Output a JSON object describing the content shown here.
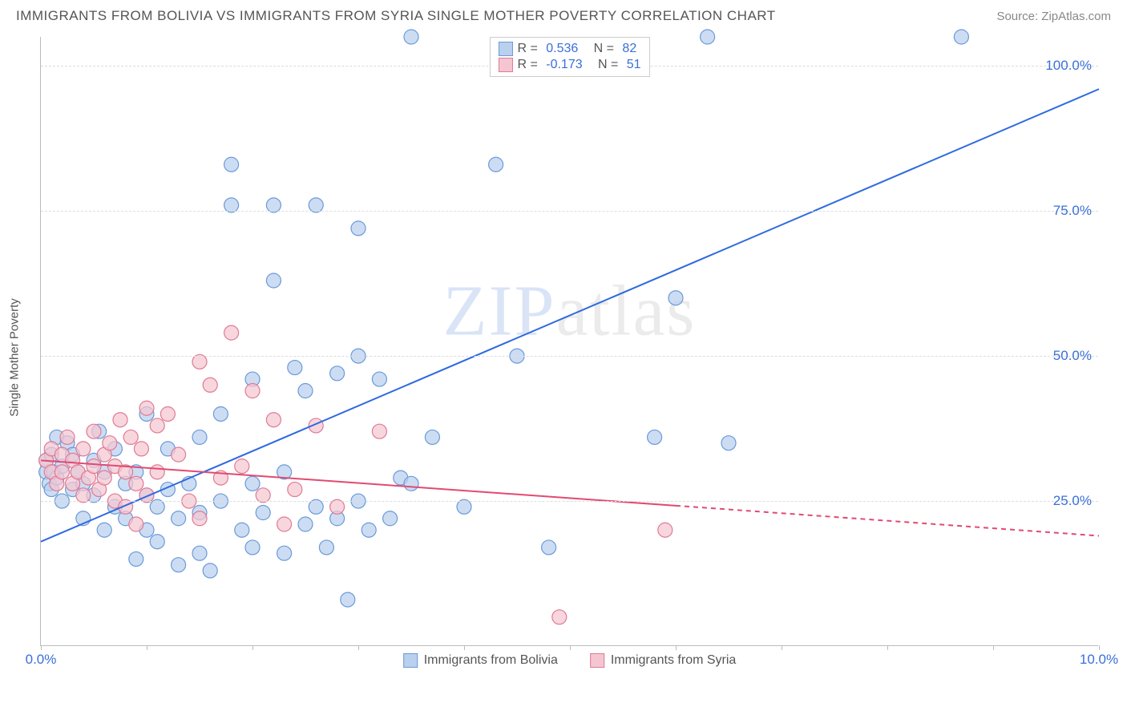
{
  "header": {
    "title": "IMMIGRANTS FROM BOLIVIA VS IMMIGRANTS FROM SYRIA SINGLE MOTHER POVERTY CORRELATION CHART",
    "source": "Source: ZipAtlas.com"
  },
  "chart": {
    "type": "scatter",
    "ylabel": "Single Mother Poverty",
    "watermark_a": "ZIP",
    "watermark_b": "atlas",
    "background_color": "#ffffff",
    "grid_color": "#dddddd",
    "axis_color": "#bbbbbb",
    "xlim": [
      0,
      10
    ],
    "ylim": [
      0,
      105
    ],
    "xtick_positions": [
      0,
      1,
      2,
      3,
      4,
      5,
      6,
      7,
      8,
      9,
      10
    ],
    "xtick_labels": {
      "0": "0.0%",
      "10": "10.0%"
    },
    "ytick_positions": [
      25,
      50,
      75,
      100
    ],
    "ytick_labels": {
      "25": "25.0%",
      "50": "50.0%",
      "75": "75.0%",
      "100": "100.0%"
    },
    "series": [
      {
        "name": "Immigrants from Bolivia",
        "color_fill": "#b9d0ee",
        "color_stroke": "#6a9ad8",
        "marker_radius": 9,
        "marker_opacity": 0.72,
        "line_color": "#2f6ae0",
        "line_width": 2,
        "R": "0.536",
        "N": "82",
        "trend": {
          "x1": 0,
          "y1": 18,
          "x2": 10,
          "y2": 96
        },
        "trend_dash_from_x": null,
        "points": [
          [
            0.05,
            30
          ],
          [
            0.05,
            32
          ],
          [
            0.08,
            28
          ],
          [
            0.1,
            33
          ],
          [
            0.1,
            27
          ],
          [
            0.12,
            30
          ],
          [
            0.15,
            29
          ],
          [
            0.15,
            36
          ],
          [
            0.2,
            25
          ],
          [
            0.2,
            31
          ],
          [
            0.25,
            35
          ],
          [
            0.3,
            27
          ],
          [
            0.3,
            33
          ],
          [
            0.35,
            30
          ],
          [
            0.4,
            22
          ],
          [
            0.4,
            28
          ],
          [
            0.5,
            26
          ],
          [
            0.5,
            32
          ],
          [
            0.55,
            37
          ],
          [
            0.6,
            20
          ],
          [
            0.6,
            30
          ],
          [
            0.7,
            24
          ],
          [
            0.7,
            34
          ],
          [
            0.8,
            22
          ],
          [
            0.8,
            28
          ],
          [
            0.9,
            15
          ],
          [
            0.9,
            30
          ],
          [
            1.0,
            20
          ],
          [
            1.0,
            26
          ],
          [
            1.0,
            40
          ],
          [
            1.1,
            18
          ],
          [
            1.1,
            24
          ],
          [
            1.2,
            27
          ],
          [
            1.2,
            34
          ],
          [
            1.3,
            14
          ],
          [
            1.3,
            22
          ],
          [
            1.4,
            28
          ],
          [
            1.5,
            16
          ],
          [
            1.5,
            23
          ],
          [
            1.5,
            36
          ],
          [
            1.6,
            13
          ],
          [
            1.7,
            25
          ],
          [
            1.7,
            40
          ],
          [
            1.8,
            76
          ],
          [
            1.8,
            83
          ],
          [
            1.9,
            20
          ],
          [
            2.0,
            17
          ],
          [
            2.0,
            28
          ],
          [
            2.0,
            46
          ],
          [
            2.1,
            23
          ],
          [
            2.2,
            63
          ],
          [
            2.2,
            76
          ],
          [
            2.3,
            16
          ],
          [
            2.3,
            30
          ],
          [
            2.4,
            48
          ],
          [
            2.5,
            21
          ],
          [
            2.5,
            44
          ],
          [
            2.6,
            24
          ],
          [
            2.6,
            76
          ],
          [
            2.7,
            17
          ],
          [
            2.8,
            22
          ],
          [
            2.8,
            47
          ],
          [
            2.9,
            8
          ],
          [
            3.0,
            25
          ],
          [
            3.0,
            50
          ],
          [
            3.0,
            72
          ],
          [
            3.1,
            20
          ],
          [
            3.2,
            46
          ],
          [
            3.3,
            22
          ],
          [
            3.4,
            29
          ],
          [
            3.5,
            105
          ],
          [
            3.5,
            28
          ],
          [
            3.7,
            36
          ],
          [
            4.0,
            24
          ],
          [
            4.3,
            83
          ],
          [
            4.5,
            50
          ],
          [
            4.8,
            17
          ],
          [
            5.8,
            36
          ],
          [
            6.0,
            60
          ],
          [
            6.3,
            105
          ],
          [
            6.5,
            35
          ],
          [
            8.7,
            105
          ]
        ]
      },
      {
        "name": "Immigrants from Syria",
        "color_fill": "#f5c6d1",
        "color_stroke": "#e07a94",
        "marker_radius": 9,
        "marker_opacity": 0.72,
        "line_color": "#e14a72",
        "line_width": 2,
        "R": "-0.173",
        "N": "51",
        "trend": {
          "x1": 0,
          "y1": 32,
          "x2": 10,
          "y2": 19
        },
        "trend_dash_from_x": 6.0,
        "points": [
          [
            0.05,
            32
          ],
          [
            0.1,
            30
          ],
          [
            0.1,
            34
          ],
          [
            0.15,
            28
          ],
          [
            0.2,
            33
          ],
          [
            0.2,
            30
          ],
          [
            0.25,
            36
          ],
          [
            0.3,
            28
          ],
          [
            0.3,
            32
          ],
          [
            0.35,
            30
          ],
          [
            0.4,
            26
          ],
          [
            0.4,
            34
          ],
          [
            0.45,
            29
          ],
          [
            0.5,
            31
          ],
          [
            0.5,
            37
          ],
          [
            0.55,
            27
          ],
          [
            0.6,
            33
          ],
          [
            0.6,
            29
          ],
          [
            0.65,
            35
          ],
          [
            0.7,
            25
          ],
          [
            0.7,
            31
          ],
          [
            0.75,
            39
          ],
          [
            0.8,
            24
          ],
          [
            0.8,
            30
          ],
          [
            0.85,
            36
          ],
          [
            0.9,
            21
          ],
          [
            0.9,
            28
          ],
          [
            0.95,
            34
          ],
          [
            1.0,
            41
          ],
          [
            1.0,
            26
          ],
          [
            1.1,
            30
          ],
          [
            1.1,
            38
          ],
          [
            1.2,
            40
          ],
          [
            1.3,
            33
          ],
          [
            1.4,
            25
          ],
          [
            1.5,
            49
          ],
          [
            1.5,
            22
          ],
          [
            1.6,
            45
          ],
          [
            1.7,
            29
          ],
          [
            1.8,
            54
          ],
          [
            1.9,
            31
          ],
          [
            2.0,
            44
          ],
          [
            2.1,
            26
          ],
          [
            2.2,
            39
          ],
          [
            2.3,
            21
          ],
          [
            2.4,
            27
          ],
          [
            2.6,
            38
          ],
          [
            2.8,
            24
          ],
          [
            3.2,
            37
          ],
          [
            4.9,
            5
          ],
          [
            5.9,
            20
          ]
        ]
      }
    ]
  }
}
